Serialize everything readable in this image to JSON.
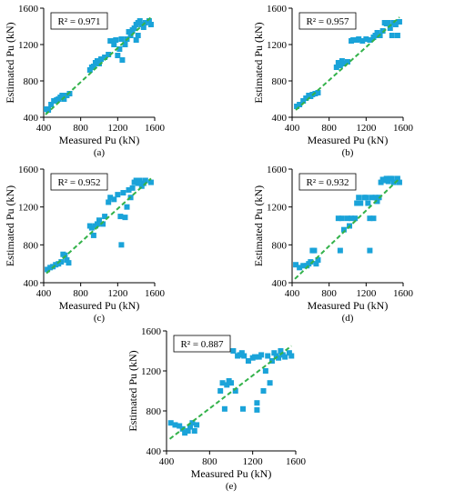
{
  "chart_data": [
    {
      "type": "scatter",
      "panel_label": "(a)",
      "xlabel": "Measured  Pu (kN)",
      "ylabel": "Estimated Pu (kN)",
      "xlim": [
        400,
        1600
      ],
      "ylim": [
        400,
        1600
      ],
      "xticks": [
        "400",
        "800",
        "1200",
        "1600"
      ],
      "yticks": [
        "400",
        "800",
        "1200",
        "1600"
      ],
      "annotation": "R² = 0.971",
      "marker_color": "#1aa3d9",
      "trendline_color": "#33b24a",
      "trendline": [
        [
          420,
          430
        ],
        [
          1560,
          1500
        ]
      ],
      "points": [
        [
          430,
          490
        ],
        [
          450,
          480
        ],
        [
          480,
          540
        ],
        [
          510,
          580
        ],
        [
          540,
          590
        ],
        [
          560,
          600
        ],
        [
          580,
          620
        ],
        [
          600,
          640
        ],
        [
          620,
          600
        ],
        [
          650,
          640
        ],
        [
          680,
          660
        ],
        [
          900,
          920
        ],
        [
          920,
          950
        ],
        [
          940,
          960
        ],
        [
          960,
          1000
        ],
        [
          980,
          1020
        ],
        [
          1000,
          990
        ],
        [
          1020,
          1040
        ],
        [
          1060,
          1060
        ],
        [
          1100,
          1090
        ],
        [
          1120,
          1240
        ],
        [
          1140,
          1240
        ],
        [
          1160,
          1200
        ],
        [
          1180,
          1250
        ],
        [
          1200,
          1080
        ],
        [
          1220,
          1150
        ],
        [
          1240,
          1260
        ],
        [
          1250,
          1030
        ],
        [
          1280,
          1200
        ],
        [
          1300,
          1260
        ],
        [
          1320,
          1340
        ],
        [
          1340,
          1300
        ],
        [
          1360,
          1360
        ],
        [
          1380,
          1380
        ],
        [
          1400,
          1420
        ],
        [
          1420,
          1440
        ],
        [
          1440,
          1460
        ],
        [
          1400,
          1250
        ],
        [
          1420,
          1300
        ],
        [
          1460,
          1420
        ],
        [
          1480,
          1390
        ],
        [
          1500,
          1440
        ],
        [
          1540,
          1460
        ],
        [
          1560,
          1420
        ]
      ]
    },
    {
      "type": "scatter",
      "panel_label": "(b)",
      "xlabel": "Measured Pu (kN)",
      "ylabel": "Estimated Pu (kN)",
      "xlim": [
        400,
        1600
      ],
      "ylim": [
        400,
        1600
      ],
      "xticks": [
        "400",
        "800",
        "1200",
        "1600"
      ],
      "yticks": [
        "400",
        "800",
        "1200",
        "1600"
      ],
      "annotation": "R² = 0.957",
      "marker_color": "#1aa3d9",
      "trendline_color": "#33b24a",
      "trendline": [
        [
          440,
          480
        ],
        [
          1560,
          1500
        ]
      ],
      "points": [
        [
          450,
          520
        ],
        [
          480,
          540
        ],
        [
          520,
          580
        ],
        [
          550,
          610
        ],
        [
          580,
          640
        ],
        [
          600,
          630
        ],
        [
          620,
          650
        ],
        [
          650,
          660
        ],
        [
          680,
          670
        ],
        [
          880,
          950
        ],
        [
          900,
          1000
        ],
        [
          920,
          970
        ],
        [
          940,
          1020
        ],
        [
          960,
          990
        ],
        [
          1000,
          1010
        ],
        [
          1040,
          1240
        ],
        [
          1060,
          1250
        ],
        [
          1100,
          1250
        ],
        [
          1120,
          1260
        ],
        [
          1160,
          1240
        ],
        [
          1200,
          1260
        ],
        [
          1240,
          1250
        ],
        [
          1280,
          1280
        ],
        [
          1300,
          1300
        ],
        [
          1320,
          1330
        ],
        [
          1350,
          1300
        ],
        [
          1380,
          1350
        ],
        [
          1400,
          1440
        ],
        [
          1420,
          1430
        ],
        [
          1440,
          1440
        ],
        [
          1460,
          1380
        ],
        [
          1480,
          1300
        ],
        [
          1500,
          1440
        ],
        [
          1520,
          1420
        ],
        [
          1540,
          1300
        ],
        [
          1560,
          1450
        ]
      ]
    },
    {
      "type": "scatter",
      "panel_label": "(c)",
      "xlabel": "Measured Pu (kN)",
      "ylabel": "Estimated Pu (kN)",
      "xlim": [
        400,
        1600
      ],
      "ylim": [
        400,
        1600
      ],
      "xticks": [
        "400",
        "800",
        "1200",
        "1600"
      ],
      "yticks": [
        "400",
        "800",
        "1200",
        "1600"
      ],
      "annotation": "R² = 0.952",
      "marker_color": "#1aa3d9",
      "trendline_color": "#33b24a",
      "trendline": [
        [
          430,
          500
        ],
        [
          1560,
          1500
        ]
      ],
      "points": [
        [
          440,
          540
        ],
        [
          470,
          560
        ],
        [
          500,
          570
        ],
        [
          530,
          590
        ],
        [
          560,
          600
        ],
        [
          590,
          620
        ],
        [
          610,
          700
        ],
        [
          630,
          690
        ],
        [
          650,
          640
        ],
        [
          670,
          610
        ],
        [
          900,
          1000
        ],
        [
          920,
          980
        ],
        [
          940,
          900
        ],
        [
          960,
          1000
        ],
        [
          980,
          1020
        ],
        [
          1000,
          1060
        ],
        [
          1040,
          1020
        ],
        [
          1060,
          1100
        ],
        [
          1100,
          1250
        ],
        [
          1120,
          1300
        ],
        [
          1160,
          1280
        ],
        [
          1200,
          1330
        ],
        [
          1230,
          1100
        ],
        [
          1240,
          800
        ],
        [
          1260,
          1350
        ],
        [
          1280,
          1090
        ],
        [
          1300,
          1200
        ],
        [
          1320,
          1380
        ],
        [
          1340,
          1300
        ],
        [
          1360,
          1400
        ],
        [
          1380,
          1460
        ],
        [
          1400,
          1480
        ],
        [
          1420,
          1450
        ],
        [
          1440,
          1480
        ],
        [
          1460,
          1420
        ],
        [
          1480,
          1450
        ],
        [
          1500,
          1480
        ],
        [
          1560,
          1460
        ]
      ]
    },
    {
      "type": "scatter",
      "panel_label": "(d)",
      "xlabel": "Measured Pu (kN)",
      "ylabel": "Estimated Pu (kN)",
      "xlim": [
        400,
        1600
      ],
      "ylim": [
        400,
        1600
      ],
      "xticks": [
        "400",
        "800",
        "1200",
        "1600"
      ],
      "yticks": [
        "400",
        "800",
        "1200",
        "1600"
      ],
      "annotation": "R² = 0.932",
      "marker_color": "#1aa3d9",
      "trendline_color": "#33b24a",
      "trendline": [
        [
          430,
          440
        ],
        [
          1560,
          1500
        ]
      ],
      "points": [
        [
          440,
          590
        ],
        [
          480,
          560
        ],
        [
          520,
          580
        ],
        [
          560,
          580
        ],
        [
          580,
          600
        ],
        [
          600,
          620
        ],
        [
          620,
          740
        ],
        [
          640,
          740
        ],
        [
          660,
          600
        ],
        [
          680,
          640
        ],
        [
          900,
          1080
        ],
        [
          920,
          740
        ],
        [
          940,
          1080
        ],
        [
          960,
          960
        ],
        [
          1000,
          1080
        ],
        [
          1020,
          1000
        ],
        [
          1040,
          1080
        ],
        [
          1080,
          1080
        ],
        [
          1100,
          1240
        ],
        [
          1120,
          1300
        ],
        [
          1140,
          1240
        ],
        [
          1180,
          1300
        ],
        [
          1200,
          1300
        ],
        [
          1220,
          1240
        ],
        [
          1240,
          1080
        ],
        [
          1240,
          740
        ],
        [
          1260,
          1300
        ],
        [
          1280,
          1080
        ],
        [
          1300,
          1300
        ],
        [
          1320,
          1260
        ],
        [
          1340,
          1300
        ],
        [
          1360,
          1460
        ],
        [
          1380,
          1490
        ],
        [
          1400,
          1480
        ],
        [
          1420,
          1500
        ],
        [
          1440,
          1470
        ],
        [
          1460,
          1500
        ],
        [
          1480,
          1500
        ],
        [
          1500,
          1460
        ],
        [
          1540,
          1500
        ],
        [
          1560,
          1460
        ]
      ]
    },
    {
      "type": "scatter",
      "panel_label": "(e)",
      "xlabel": "Measured Pu (kN)",
      "ylabel": "Estimated Pu (kN)",
      "xlim": [
        400,
        1600
      ],
      "ylim": [
        400,
        1600
      ],
      "xticks": [
        "400",
        "800",
        "1200",
        "1600"
      ],
      "yticks": [
        "400",
        "800",
        "1200",
        "1600"
      ],
      "annotation": "R² = 0.887",
      "marker_color": "#1aa3d9",
      "trendline_color": "#33b24a",
      "trendline": [
        [
          430,
          520
        ],
        [
          1560,
          1450
        ]
      ],
      "points": [
        [
          440,
          680
        ],
        [
          480,
          660
        ],
        [
          520,
          650
        ],
        [
          550,
          620
        ],
        [
          570,
          580
        ],
        [
          600,
          600
        ],
        [
          620,
          640
        ],
        [
          640,
          680
        ],
        [
          660,
          600
        ],
        [
          680,
          660
        ],
        [
          900,
          1000
        ],
        [
          920,
          1080
        ],
        [
          940,
          820
        ],
        [
          960,
          1060
        ],
        [
          980,
          1100
        ],
        [
          1000,
          1080
        ],
        [
          1020,
          1400
        ],
        [
          1040,
          1000
        ],
        [
          1060,
          1350
        ],
        [
          1080,
          1360
        ],
        [
          1100,
          1380
        ],
        [
          1110,
          820
        ],
        [
          1120,
          1350
        ],
        [
          1160,
          1300
        ],
        [
          1200,
          1330
        ],
        [
          1220,
          1340
        ],
        [
          1240,
          880
        ],
        [
          1240,
          810
        ],
        [
          1260,
          1340
        ],
        [
          1280,
          1360
        ],
        [
          1300,
          1000
        ],
        [
          1320,
          1200
        ],
        [
          1340,
          1350
        ],
        [
          1360,
          1080
        ],
        [
          1380,
          1300
        ],
        [
          1400,
          1380
        ],
        [
          1420,
          1350
        ],
        [
          1440,
          1330
        ],
        [
          1460,
          1400
        ],
        [
          1480,
          1360
        ],
        [
          1500,
          1340
        ],
        [
          1540,
          1380
        ],
        [
          1560,
          1350
        ]
      ]
    }
  ]
}
